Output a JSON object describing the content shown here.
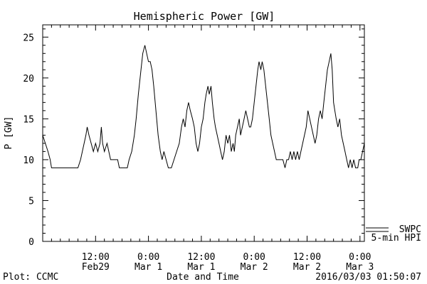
{
  "chart_data": {
    "type": "line",
    "title": "Hemispheric Power [GW]",
    "xlabel": "Date and Time",
    "ylabel": "P [GW]",
    "ylim": [
      0,
      26.5
    ],
    "yticks": [
      0,
      5,
      10,
      15,
      20,
      25
    ],
    "xlim_hours": [
      0,
      73
    ],
    "xticks": [
      {
        "hour": 12,
        "line1": "12:00",
        "line2": "Feb29"
      },
      {
        "hour": 24,
        "line1": "0:00",
        "line2": "Mar 1"
      },
      {
        "hour": 36,
        "line1": "12:00",
        "line2": "Mar 1"
      },
      {
        "hour": 48,
        "line1": "0:00",
        "line2": "Mar 2"
      },
      {
        "hour": 60,
        "line1": "12:00",
        "line2": "Mar 2"
      },
      {
        "hour": 72,
        "line1": "0:00",
        "line2": "Mar 3"
      }
    ],
    "legend": {
      "position": "bottom-right",
      "entries": [
        "SWPC",
        "5-min HPI"
      ]
    },
    "series": [
      {
        "name": "5-min HPI",
        "color": "#000000",
        "points": [
          [
            0,
            13
          ],
          [
            0.6,
            12
          ],
          [
            1.2,
            11
          ],
          [
            1.7,
            10
          ],
          [
            2,
            9
          ],
          [
            8,
            9
          ],
          [
            8.6,
            10
          ],
          [
            9,
            11
          ],
          [
            9.4,
            12
          ],
          [
            9.8,
            13
          ],
          [
            10.1,
            14
          ],
          [
            10.5,
            13
          ],
          [
            11,
            12
          ],
          [
            11.5,
            11
          ],
          [
            12,
            12
          ],
          [
            12.5,
            11
          ],
          [
            13,
            12
          ],
          [
            13.3,
            14
          ],
          [
            13.6,
            12
          ],
          [
            14,
            11
          ],
          [
            14.6,
            12
          ],
          [
            15,
            11
          ],
          [
            15.4,
            10
          ],
          [
            17,
            10
          ],
          [
            17.4,
            9
          ],
          [
            19,
            9
          ],
          [
            19.2,
            9
          ],
          [
            19.6,
            10
          ],
          [
            20.2,
            11
          ],
          [
            20.8,
            13
          ],
          [
            21.2,
            15
          ],
          [
            21.7,
            18
          ],
          [
            22.3,
            21
          ],
          [
            22.7,
            23
          ],
          [
            23.2,
            24
          ],
          [
            23.6,
            23
          ],
          [
            24,
            22
          ],
          [
            24.4,
            22
          ],
          [
            24.8,
            21
          ],
          [
            25.2,
            19
          ],
          [
            25.7,
            16
          ],
          [
            26.2,
            13
          ],
          [
            26.7,
            11
          ],
          [
            27.1,
            10
          ],
          [
            27.5,
            11
          ],
          [
            28,
            10
          ],
          [
            28.5,
            9
          ],
          [
            29.2,
            9
          ],
          [
            29.8,
            10
          ],
          [
            30.4,
            11
          ],
          [
            31,
            12
          ],
          [
            31.5,
            14
          ],
          [
            31.9,
            15
          ],
          [
            32.3,
            14
          ],
          [
            32.7,
            16
          ],
          [
            33.1,
            17
          ],
          [
            33.5,
            16
          ],
          [
            34,
            15
          ],
          [
            34.4,
            14
          ],
          [
            34.8,
            12
          ],
          [
            35.2,
            11
          ],
          [
            35.6,
            12
          ],
          [
            36,
            14
          ],
          [
            36.4,
            15
          ],
          [
            36.8,
            17
          ],
          [
            37.1,
            18
          ],
          [
            37.5,
            19
          ],
          [
            37.8,
            18
          ],
          [
            38.2,
            19
          ],
          [
            38.5,
            17
          ],
          [
            38.9,
            15
          ],
          [
            39.2,
            14
          ],
          [
            39.6,
            13
          ],
          [
            40,
            12
          ],
          [
            40.4,
            11
          ],
          [
            40.8,
            10
          ],
          [
            41.2,
            11
          ],
          [
            41.6,
            13
          ],
          [
            42,
            12
          ],
          [
            42.4,
            13
          ],
          [
            42.8,
            11
          ],
          [
            43.2,
            12
          ],
          [
            43.5,
            11
          ],
          [
            43.8,
            13
          ],
          [
            44.2,
            14
          ],
          [
            44.6,
            15
          ],
          [
            44.9,
            13
          ],
          [
            45.3,
            14
          ],
          [
            45.7,
            15
          ],
          [
            46.1,
            16
          ],
          [
            46.5,
            15
          ],
          [
            46.9,
            14
          ],
          [
            47.2,
            14
          ],
          [
            47.6,
            15
          ],
          [
            48,
            17
          ],
          [
            48.4,
            19
          ],
          [
            48.8,
            21
          ],
          [
            49.1,
            22
          ],
          [
            49.5,
            21
          ],
          [
            49.8,
            22
          ],
          [
            50.2,
            21
          ],
          [
            50.6,
            19
          ],
          [
            51,
            17
          ],
          [
            51.4,
            15
          ],
          [
            51.8,
            13
          ],
          [
            52.2,
            12
          ],
          [
            52.6,
            11
          ],
          [
            53,
            10
          ],
          [
            54.5,
            10
          ],
          [
            55,
            9
          ],
          [
            55.4,
            10
          ],
          [
            55.8,
            10
          ],
          [
            56.2,
            11
          ],
          [
            56.6,
            10
          ],
          [
            57,
            11
          ],
          [
            57.4,
            10
          ],
          [
            57.8,
            11
          ],
          [
            58.2,
            10
          ],
          [
            58.6,
            11
          ],
          [
            59,
            12
          ],
          [
            59.4,
            13
          ],
          [
            59.8,
            14
          ],
          [
            60.2,
            16
          ],
          [
            60.6,
            15
          ],
          [
            61,
            14
          ],
          [
            61.4,
            13
          ],
          [
            61.8,
            12
          ],
          [
            62.2,
            13
          ],
          [
            62.6,
            15
          ],
          [
            63,
            16
          ],
          [
            63.4,
            15
          ],
          [
            63.8,
            17
          ],
          [
            64.2,
            19
          ],
          [
            64.6,
            21
          ],
          [
            65,
            22
          ],
          [
            65.4,
            23
          ],
          [
            65.7,
            21
          ],
          [
            66,
            17
          ],
          [
            66.3,
            16
          ],
          [
            66.6,
            15
          ],
          [
            67,
            14
          ],
          [
            67.4,
            15
          ],
          [
            67.8,
            13
          ],
          [
            68.2,
            12
          ],
          [
            68.6,
            11
          ],
          [
            69,
            10
          ],
          [
            69.4,
            9
          ],
          [
            69.8,
            10
          ],
          [
            70.2,
            9
          ],
          [
            70.6,
            10
          ],
          [
            71,
            9
          ],
          [
            71.5,
            9
          ],
          [
            71.8,
            10
          ],
          [
            72.2,
            10
          ],
          [
            72.6,
            11
          ],
          [
            73,
            12
          ]
        ]
      },
      {
        "name": "SWPC",
        "color": "#000000",
        "points": []
      }
    ]
  },
  "footer": {
    "left": "Plot: CCMC",
    "right": "2016/03/03 01:50:07"
  }
}
